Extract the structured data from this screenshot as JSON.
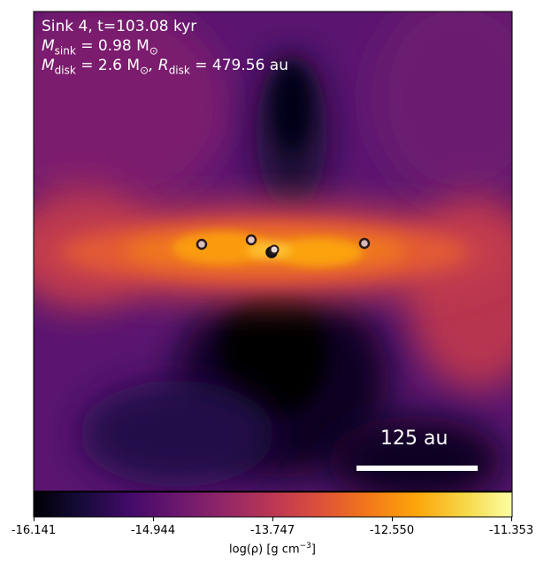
{
  "annotation": {
    "sink_line": "Sink 4, t=103.08 kyr",
    "msink_prefix": "M",
    "msink_sub": "sink",
    "msink_value": " = 0.98 M",
    "msink_sun": "⊙",
    "mdisk_prefix": "M",
    "mdisk_sub": "disk",
    "mdisk_value": " = 2.6 M",
    "mdisk_sun": "⊙",
    "rdisk_prefix": ", R",
    "rdisk_sub": "disk",
    "rdisk_value": " = 479.56 au"
  },
  "scale_bar": {
    "label": "125 au"
  },
  "colorbar": {
    "ticks": [
      "-16.141",
      "-14.944",
      "-13.747",
      "-12.550",
      "-11.353"
    ],
    "label_prefix": "log(ρ) [g cm",
    "label_exp": "−3",
    "label_suffix": "]",
    "colormap": "inferno"
  },
  "sinks": [
    {
      "name": "sink-a",
      "fill": "#d9c0c0"
    },
    {
      "name": "sink-b",
      "fill": "#e0c8c8"
    },
    {
      "name": "sink-c",
      "fill": "#1a1a1a"
    },
    {
      "name": "sink-d",
      "fill": "#e8d8d8"
    },
    {
      "name": "sink-e",
      "fill": "#d9b8b8"
    }
  ]
}
